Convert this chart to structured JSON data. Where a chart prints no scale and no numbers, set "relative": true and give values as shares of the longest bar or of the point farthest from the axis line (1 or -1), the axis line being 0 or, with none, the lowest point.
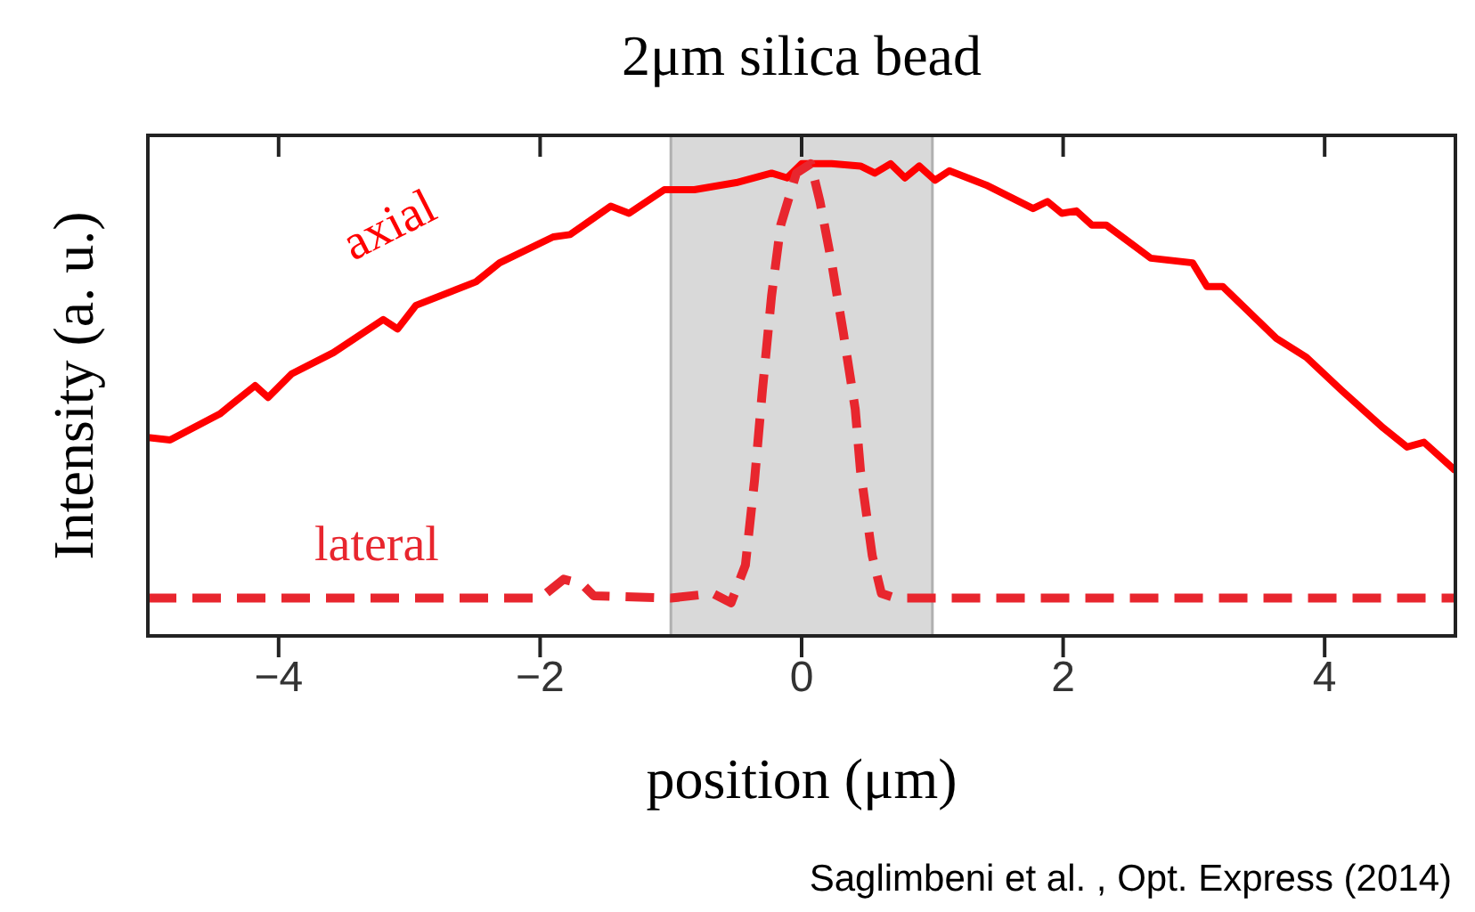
{
  "chart_data": {
    "type": "line",
    "title": "2μm silica bead",
    "xlabel": "position (μm)",
    "ylabel": "Intensity (a. u.)",
    "relative": true,
    "xlim": [
      -5,
      5
    ],
    "xticks": [
      {
        "value": -4,
        "label": "−4"
      },
      {
        "value": -2,
        "label": "−2"
      },
      0,
      2,
      4
    ],
    "tick_labels": "x",
    "bands": [
      {
        "axis": "x",
        "from": -1,
        "to": 1,
        "color": "#d9d9d9"
      }
    ],
    "annotations": [
      "Saglimbeni et al. , Opt. Express (2014)"
    ],
    "series": [
      {
        "name": "axial",
        "color": "#ff0000",
        "line_style": "solid",
        "x": [
          -5,
          -4.83,
          -4.45,
          -4.18,
          -4.08,
          -3.9,
          -3.58,
          -3.2,
          -3.09,
          -2.95,
          -2.49,
          -2.31,
          -1.9,
          -1.77,
          -1.46,
          -1.32,
          -1.05,
          -0.82,
          -0.5,
          -0.23,
          -0.11,
          0,
          0.23,
          0.45,
          0.56,
          0.68,
          0.79,
          0.9,
          1.02,
          1.13,
          1.41,
          1.77,
          1.88,
          1.99,
          2.1,
          2.22,
          2.33,
          2.67,
          2.99,
          3.1,
          3.22,
          3.63,
          3.86,
          4.13,
          4.45,
          4.63,
          4.76,
          5
        ],
        "values": [
          0.42,
          0.415,
          0.47,
          0.53,
          0.505,
          0.555,
          0.6,
          0.67,
          0.65,
          0.7,
          0.75,
          0.79,
          0.845,
          0.85,
          0.91,
          0.895,
          0.945,
          0.945,
          0.96,
          0.98,
          0.97,
          1,
          1,
          0.995,
          0.98,
          1,
          0.97,
          0.995,
          0.965,
          0.985,
          0.955,
          0.905,
          0.92,
          0.895,
          0.9,
          0.87,
          0.87,
          0.8,
          0.79,
          0.74,
          0.74,
          0.63,
          0.59,
          0.52,
          0.44,
          0.4,
          0.41,
          0.35
        ]
      },
      {
        "name": "lateral",
        "color": "#e8262e",
        "line_style": "dashed",
        "x": [
          -5,
          -2,
          -1.82,
          -1.68,
          -1.59,
          -1,
          -0.68,
          -0.54,
          -0.43,
          -0.36,
          -0.3,
          -0.23,
          -0.16,
          -0.04,
          0.07,
          0.14,
          0.23,
          0.32,
          0.41,
          0.45,
          0.54,
          0.61,
          0.72,
          5
        ],
        "values": [
          0.08,
          0.08,
          0.12,
          0.11,
          0.085,
          0.08,
          0.09,
          0.07,
          0.15,
          0.33,
          0.52,
          0.72,
          0.87,
          0.98,
          1,
          0.92,
          0.79,
          0.64,
          0.48,
          0.35,
          0.17,
          0.09,
          0.08,
          0.08
        ]
      }
    ]
  }
}
